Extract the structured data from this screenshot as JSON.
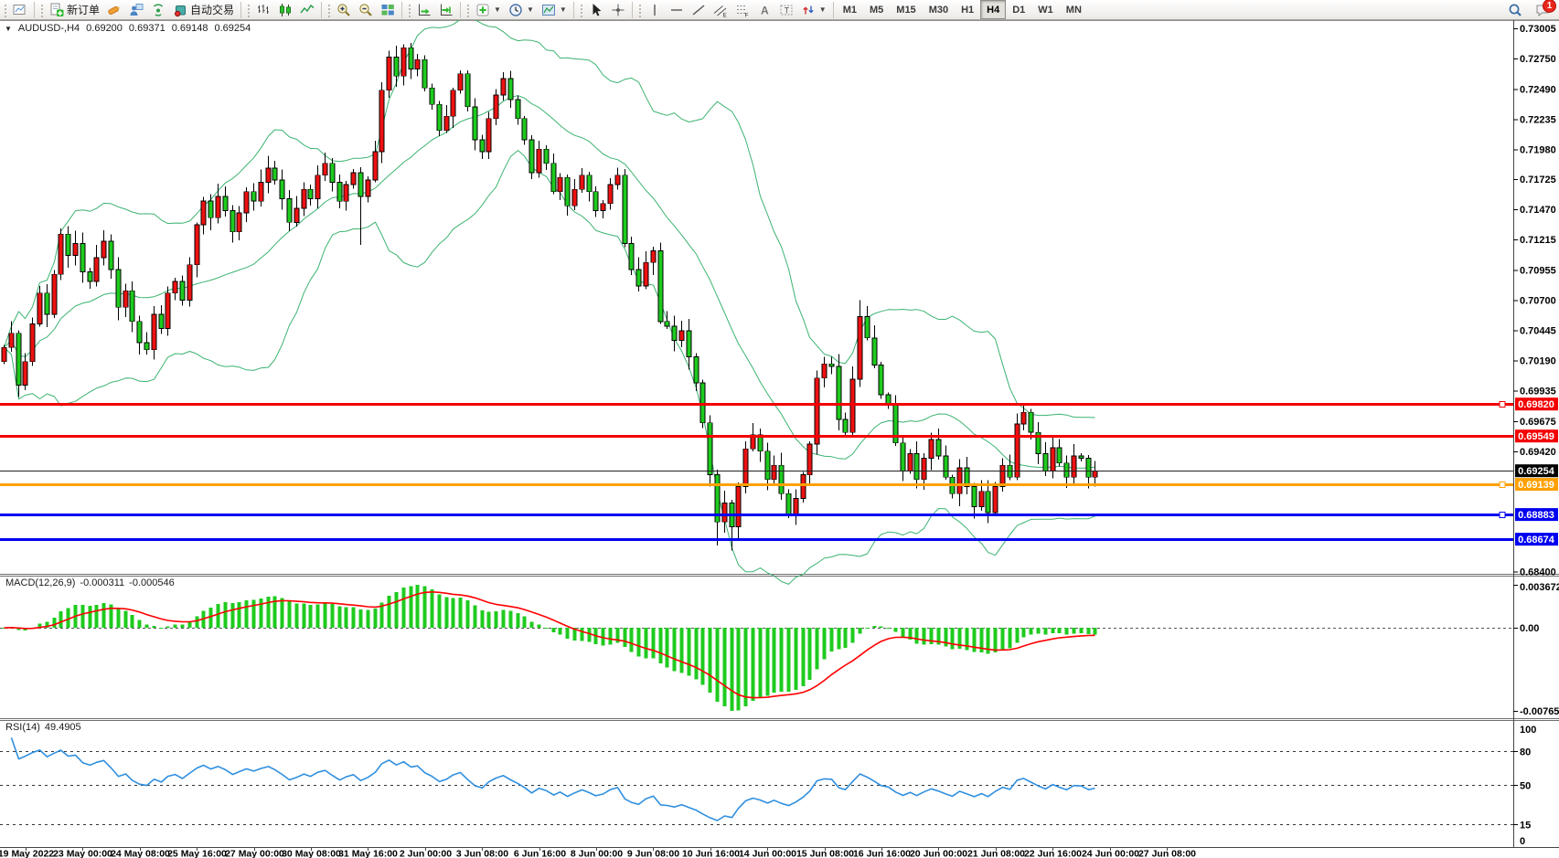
{
  "toolbar": {
    "groups": [
      {
        "name": "file",
        "items": [
          {
            "name": "new-chart",
            "glyph": "minichart"
          }
        ]
      },
      {
        "name": "trade",
        "items": [
          {
            "name": "new-order",
            "glyph": "docnew",
            "label": "新订单"
          },
          {
            "name": "marker-pen",
            "glyph": "crayon"
          },
          {
            "name": "metaeditor",
            "glyph": "person"
          },
          {
            "name": "signals",
            "glyph": "radar"
          },
          {
            "name": "autotrading",
            "glyph": "autobox",
            "label": "自动交易"
          }
        ]
      },
      {
        "name": "chart-type",
        "items": [
          {
            "name": "bar-chart",
            "glyph": "bars"
          },
          {
            "name": "candlestick-chart",
            "glyph": "candles"
          },
          {
            "name": "line-chart",
            "glyph": "linechart"
          }
        ]
      },
      {
        "name": "zoom",
        "items": [
          {
            "name": "zoom-in",
            "glyph": "zoomin"
          },
          {
            "name": "zoom-out",
            "glyph": "zoomout"
          },
          {
            "name": "tile-windows",
            "glyph": "tiles"
          }
        ]
      },
      {
        "name": "scroll",
        "items": [
          {
            "name": "auto-scroll",
            "glyph": "autoscroll"
          },
          {
            "name": "chart-shift",
            "glyph": "shift"
          }
        ]
      },
      {
        "name": "dropdowns",
        "items": [
          {
            "name": "indicators-menu",
            "glyph": "plusbox",
            "caret": true
          },
          {
            "name": "periods-menu",
            "glyph": "clock",
            "caret": true
          },
          {
            "name": "templates-menu",
            "glyph": "template",
            "caret": true
          }
        ]
      },
      {
        "name": "pointer",
        "items": [
          {
            "name": "cursor",
            "glyph": "cursor"
          },
          {
            "name": "crosshair",
            "glyph": "crosshair"
          }
        ]
      },
      {
        "name": "objects",
        "items": [
          {
            "name": "vertical-line",
            "glyph": "vline"
          },
          {
            "name": "horizontal-line",
            "glyph": "hline"
          },
          {
            "name": "trendline",
            "glyph": "trend"
          },
          {
            "name": "equidistant-channel",
            "glyph": "channel"
          },
          {
            "name": "fibonacci-retracement",
            "glyph": "fibo"
          },
          {
            "name": "text",
            "glyph": "textA"
          },
          {
            "name": "text-label",
            "glyph": "textT"
          },
          {
            "name": "arrows",
            "glyph": "arrows",
            "caret": true
          }
        ]
      }
    ],
    "timeframes": {
      "items": [
        "M1",
        "M5",
        "M15",
        "M30",
        "H1",
        "H4",
        "D1",
        "W1",
        "MN"
      ],
      "active": "H4"
    },
    "right": [
      {
        "name": "search",
        "glyph": "search"
      },
      {
        "name": "chat",
        "glyph": "chat",
        "badge": "1"
      }
    ]
  },
  "chart": {
    "symbol_line": {
      "collapse_icon": "▼",
      "symbol": "AUDUSD-,H4",
      "open": "0.69200",
      "high": "0.69371",
      "low": "0.69148",
      "close": "0.69254"
    },
    "macd_label": {
      "name": "MACD(12,26,9)",
      "value1": "-0.000311",
      "value2": "-0.000546"
    },
    "rsi_label": {
      "name": "RSI(14)",
      "value": "49.4905"
    },
    "price_axis_labels": [
      "0.73005",
      "0.72750",
      "0.72490",
      "0.72235",
      "0.71980",
      "0.71725",
      "0.71470",
      "0.71215",
      "0.70955",
      "0.70700",
      "0.70445",
      "0.70190",
      "0.69935",
      "0.69675",
      "0.69420",
      "0.68400"
    ],
    "price_badges": [
      {
        "text": "0.69820",
        "color": "#f20000"
      },
      {
        "text": "0.69549",
        "color": "#f20000"
      },
      {
        "text": "0.69254",
        "color": "#000000"
      },
      {
        "text": "0.69139",
        "color": "#ffa000"
      },
      {
        "text": "0.68883",
        "color": "#0000f0"
      },
      {
        "text": "0.68674",
        "color": "#0000f0"
      }
    ],
    "hlines": [
      {
        "price": 0.6982,
        "color": "#f20000",
        "width": 3,
        "handle": true
      },
      {
        "price": 0.69549,
        "color": "#f20000",
        "width": 3,
        "handle": false
      },
      {
        "price": 0.69139,
        "color": "#ffa000",
        "width": 3,
        "handle": true
      },
      {
        "price": 0.68883,
        "color": "#0000f0",
        "width": 3,
        "handle": true
      },
      {
        "price": 0.68674,
        "color": "#0000f0",
        "width": 3,
        "handle": false
      }
    ],
    "current_price_line": {
      "price": 0.69254,
      "color": "#222222"
    },
    "time_axis_labels": [
      "19 May 2022",
      "23 May 00:00",
      "24 May 08:00",
      "25 May 16:00",
      "27 May 00:00",
      "30 May 08:00",
      "31 May 16:00",
      "2 Jun 00:00",
      "3 Jun 08:00",
      "6 Jun 16:00",
      "8 Jun 00:00",
      "9 Jun 08:00",
      "10 Jun 16:00",
      "14 Jun 00:00",
      "15 Jun 08:00",
      "16 Jun 16:00",
      "20 Jun 00:00",
      "21 Jun 08:00",
      "22 Jun 16:00",
      "24 Jun 00:00",
      "27 Jun 08:00"
    ]
  },
  "chart_data": {
    "type": "candlestick",
    "symbol": "AUDUSD-",
    "timeframe": "H4",
    "ohlc_current": {
      "open": 0.692,
      "high": 0.69371,
      "low": 0.69148,
      "close": 0.69254
    },
    "price_axis_range": {
      "top": 0.73005,
      "bottom": 0.684
    },
    "first_open": 0.7018,
    "closes": [
      0.703,
      0.7042,
      0.6998,
      0.7018,
      0.705,
      0.7076,
      0.7058,
      0.7092,
      0.7126,
      0.7108,
      0.7118,
      0.7094,
      0.7086,
      0.7106,
      0.712,
      0.7096,
      0.7064,
      0.7078,
      0.7052,
      0.7034,
      0.7028,
      0.7058,
      0.7046,
      0.7076,
      0.7086,
      0.707,
      0.71,
      0.7134,
      0.7154,
      0.714,
      0.7158,
      0.7146,
      0.7128,
      0.7144,
      0.7162,
      0.7154,
      0.717,
      0.7182,
      0.7172,
      0.7156,
      0.7136,
      0.7148,
      0.7164,
      0.7156,
      0.7176,
      0.7186,
      0.717,
      0.7154,
      0.7168,
      0.7178,
      0.7158,
      0.7172,
      0.7196,
      0.7248,
      0.7276,
      0.726,
      0.7284,
      0.7266,
      0.7274,
      0.725,
      0.7236,
      0.7214,
      0.7226,
      0.7248,
      0.7262,
      0.7234,
      0.7206,
      0.7196,
      0.7224,
      0.7244,
      0.7258,
      0.724,
      0.7224,
      0.7206,
      0.7178,
      0.7198,
      0.7186,
      0.7162,
      0.7174,
      0.715,
      0.7164,
      0.7176,
      0.7162,
      0.7146,
      0.7152,
      0.7168,
      0.7176,
      0.7118,
      0.7096,
      0.7082,
      0.7102,
      0.7112,
      0.7052,
      0.7048,
      0.7036,
      0.7044,
      0.7022,
      0.7,
      0.6966,
      0.6922,
      0.6882,
      0.6898,
      0.6878,
      0.6912,
      0.6944,
      0.6956,
      0.6942,
      0.6918,
      0.693,
      0.6906,
      0.6888,
      0.6902,
      0.6922,
      0.6948,
      0.7004,
      0.7016,
      0.7014,
      0.6969,
      0.6958,
      0.7003,
      0.7056,
      0.7038,
      0.7015,
      0.699,
      0.6981,
      0.6949,
      0.6925,
      0.694,
      0.6918,
      0.6936,
      0.6952,
      0.6938,
      0.692,
      0.6906,
      0.6928,
      0.6912,
      0.6895,
      0.6908,
      0.689,
      0.6912,
      0.693,
      0.692,
      0.6965,
      0.6975,
      0.6958,
      0.694,
      0.6925,
      0.6945,
      0.6932,
      0.692,
      0.6938,
      0.6936,
      0.692,
      0.69254
    ],
    "wick_overrides": {
      "2": {
        "low": 0.6988
      },
      "50": {
        "low": 0.7117
      },
      "56": {
        "high": 0.7287
      },
      "100": {
        "low": 0.6862
      },
      "102": {
        "low": 0.6858
      },
      "120": {
        "high": 0.707
      },
      "143": {
        "high": 0.6983
      }
    },
    "indicators": [
      {
        "name": "Bollinger Bands",
        "period": 20,
        "deviation": 2
      },
      {
        "name": "MACD",
        "fast": 12,
        "slow": 26,
        "signal": 9,
        "values": [
          -0.000311,
          -0.000546
        ]
      },
      {
        "name": "RSI",
        "period": 14,
        "value": 49.4905,
        "levels": [
          80,
          50,
          15
        ]
      }
    ],
    "macd_axis": {
      "max": "0.003672",
      "zero": "0.00",
      "min": "-0.007656"
    },
    "rsi_axis": {
      "max": "100",
      "levels": [
        "80",
        "50",
        "15"
      ],
      "min": "0"
    },
    "colors": {
      "bull_candle": "#ee1111",
      "bear_candle": "#1ecb1e",
      "wick": "#000000",
      "bollinger": "#3cb371",
      "macd_hist": "#1ecb1e",
      "macd_signal": "#ff0000",
      "rsi_line": "#2f8fdf",
      "background": "#ffffff",
      "axis_text": "#000000"
    }
  }
}
